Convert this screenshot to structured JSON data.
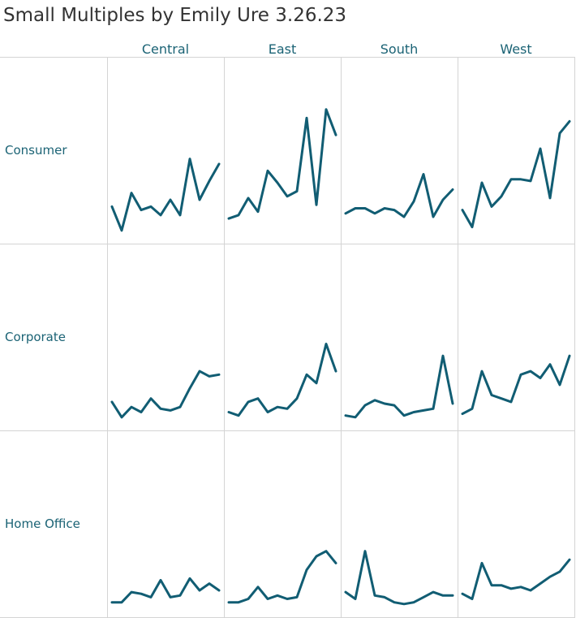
{
  "page": {
    "title": "Small Multiples by Emily Ure 3.26.23"
  },
  "style": {
    "line_color": "#115d73",
    "label_color": "#1b6375",
    "grid_color": "#d4d4d4"
  },
  "chart_data": {
    "type": "line",
    "layout": "small-multiples",
    "columns": [
      "Central",
      "East",
      "South",
      "West"
    ],
    "rows": [
      "Consumer",
      "Corporate",
      "Home Office"
    ],
    "points_per_panel": 12,
    "shared_y_scale": true,
    "ylim": [
      0,
      100
    ],
    "grid": true,
    "panels": [
      {
        "row": "Consumer",
        "column": "Central",
        "values": [
          16,
          2,
          24,
          14,
          16,
          11,
          20,
          11,
          44,
          20,
          31,
          41
        ]
      },
      {
        "row": "Consumer",
        "column": "East",
        "values": [
          9,
          11,
          21,
          13,
          37,
          30,
          22,
          25,
          68,
          17,
          73,
          58
        ]
      },
      {
        "row": "Consumer",
        "column": "South",
        "values": [
          12,
          15,
          15,
          12,
          15,
          14,
          10,
          19,
          35,
          10,
          20,
          26
        ]
      },
      {
        "row": "Consumer",
        "column": "West",
        "values": [
          14,
          4,
          30,
          16,
          22,
          32,
          32,
          31,
          50,
          21,
          59,
          66
        ]
      },
      {
        "row": "Corporate",
        "column": "Central",
        "values": [
          11,
          2,
          8,
          5,
          13,
          7,
          6,
          8,
          19,
          29,
          26,
          27
        ]
      },
      {
        "row": "Corporate",
        "column": "East",
        "values": [
          5,
          3,
          11,
          13,
          5,
          8,
          7,
          13,
          27,
          22,
          45,
          29
        ]
      },
      {
        "row": "Corporate",
        "column": "South",
        "values": [
          3,
          2,
          9,
          12,
          10,
          9,
          3,
          5,
          6,
          7,
          38,
          10
        ]
      },
      {
        "row": "Corporate",
        "column": "West",
        "values": [
          4,
          7,
          29,
          15,
          13,
          11,
          27,
          29,
          25,
          33,
          21,
          38
        ]
      },
      {
        "row": "Home Office",
        "column": "Central",
        "values": [
          3,
          3,
          9,
          8,
          6,
          16,
          6,
          7,
          17,
          10,
          14,
          10
        ]
      },
      {
        "row": "Home Office",
        "column": "East",
        "values": [
          3,
          3,
          5,
          12,
          5,
          7,
          5,
          6,
          22,
          30,
          33,
          26
        ]
      },
      {
        "row": "Home Office",
        "column": "South",
        "values": [
          9,
          5,
          33,
          7,
          6,
          3,
          2,
          3,
          6,
          9,
          7,
          7
        ]
      },
      {
        "row": "Home Office",
        "column": "West",
        "values": [
          8,
          5,
          26,
          13,
          13,
          11,
          12,
          10,
          14,
          18,
          21,
          28
        ]
      }
    ]
  }
}
